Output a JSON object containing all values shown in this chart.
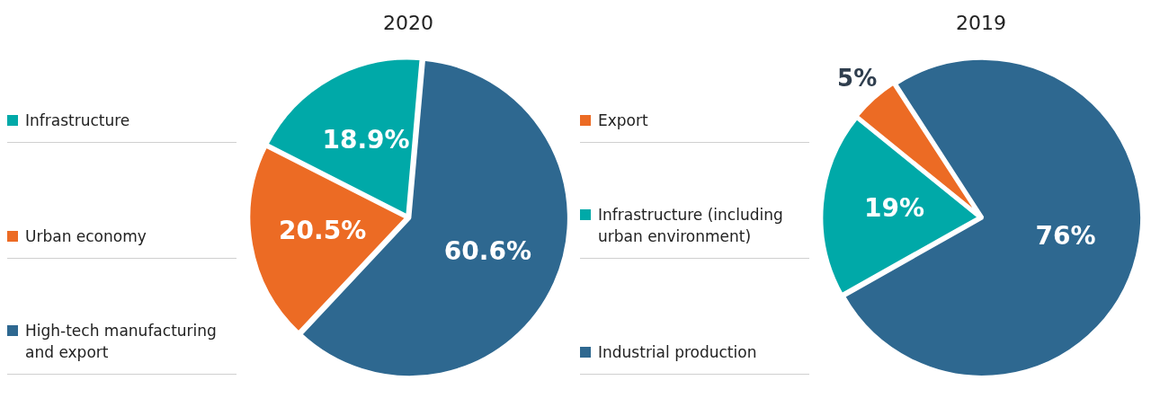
{
  "chart_data": [
    {
      "type": "pie",
      "title": "2020",
      "categories": [
        "Infrastructure",
        "Urban economy",
        "High-tech manufacturing and export"
      ],
      "values": [
        18.9,
        20.5,
        60.6
      ],
      "colors": [
        "#00a9a8",
        "#ec6b24",
        "#2e6890"
      ],
      "value_labels": [
        "18.9%",
        "20.5%",
        "60.6%"
      ],
      "legend": "left"
    },
    {
      "type": "pie",
      "title": "2019",
      "categories": [
        "Export",
        "Infrastructure (including urban environment)",
        "Industrial production"
      ],
      "values": [
        5,
        19,
        76
      ],
      "colors": [
        "#ec6b24",
        "#00a9a8",
        "#2e6890"
      ],
      "value_labels": [
        "5%",
        "19%",
        "76%"
      ],
      "legend": "left"
    }
  ]
}
